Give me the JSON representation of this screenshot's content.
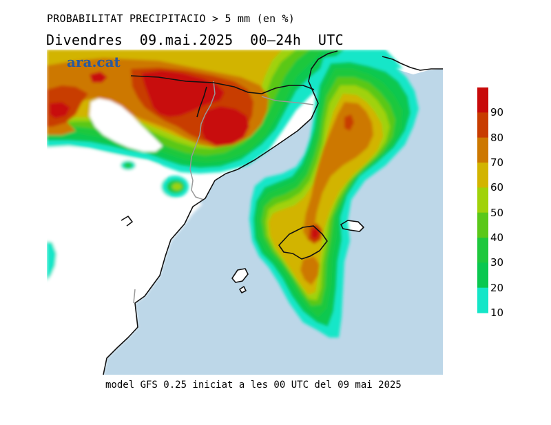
{
  "header": {
    "title": "PROBABILITAT PRECIPITACIO > 5 mm (en %)",
    "subtitle": "Divendres  09.mai.2025  00–24h  UTC"
  },
  "watermark": "ara.cat",
  "footer": "model GFS 0.25 iniciat a les 00 UTC del 09 mai 2025",
  "legend": {
    "labels": [
      "90",
      "80",
      "70",
      "60",
      "50",
      "40",
      "30",
      "20",
      "10"
    ],
    "colors": [
      "#c80a0a",
      "#c83c00",
      "#cd7800",
      "#d2b400",
      "#a0d20a",
      "#5ac819",
      "#1ec83c",
      "#0ac850",
      "#14e6c8"
    ]
  },
  "colors": {
    "sea": "#bdd7e8",
    "land": "#ffffff",
    "coast": "#111111",
    "border": "#999999"
  }
}
